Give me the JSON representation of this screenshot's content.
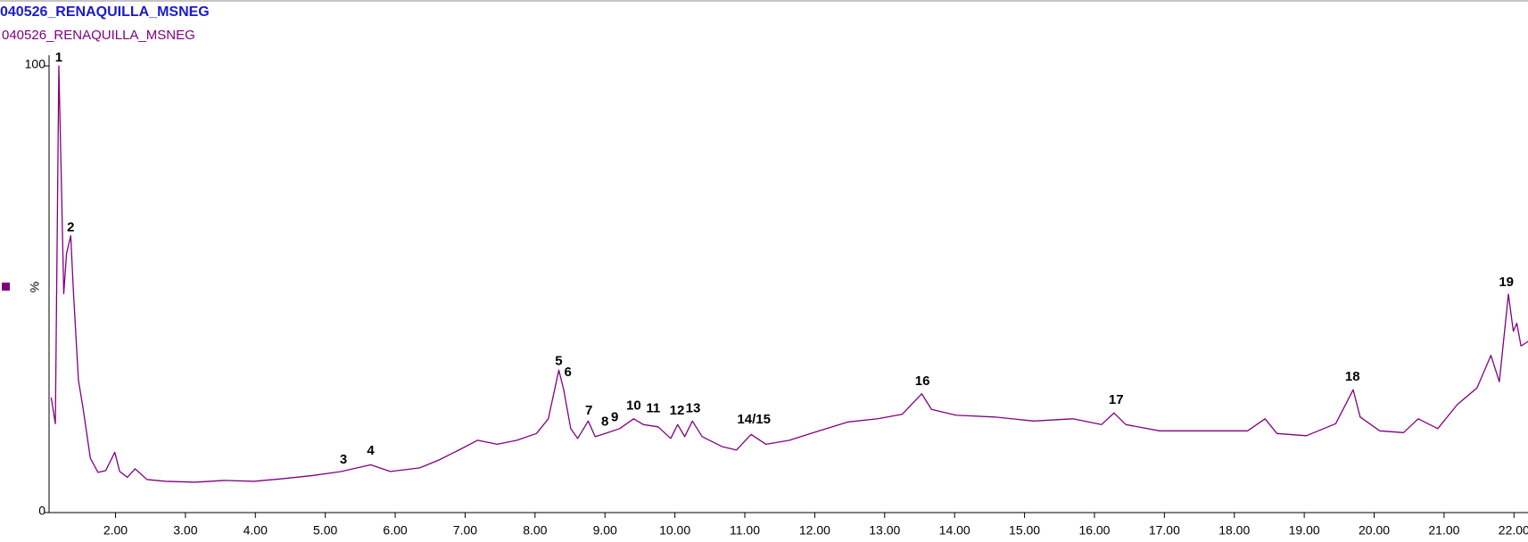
{
  "chart_data": {
    "type": "line",
    "title": "040526_RENAQUILLA_MSNEG",
    "subtitle": "040526_RENAQUILLA_MSNEG",
    "ylabel": "%",
    "xlim": [
      1.05,
      22.2
    ],
    "ylim": [
      0,
      100
    ],
    "yticks": [
      0,
      100
    ],
    "xticks": [
      {
        "value": 2,
        "label": "2.00"
      },
      {
        "value": 3,
        "label": "3.00"
      },
      {
        "value": 4,
        "label": "4.00"
      },
      {
        "value": 5,
        "label": "5.00"
      },
      {
        "value": 6,
        "label": "6.00"
      },
      {
        "value": 7,
        "label": "7.00"
      },
      {
        "value": 8,
        "label": "8.00"
      },
      {
        "value": 9,
        "label": "9.00"
      },
      {
        "value": 10,
        "label": "10.00"
      },
      {
        "value": 11,
        "label": "11.00"
      },
      {
        "value": 12,
        "label": "12.00"
      },
      {
        "value": 13,
        "label": "13.00"
      },
      {
        "value": 14,
        "label": "14.00"
      },
      {
        "value": 15,
        "label": "15.00"
      },
      {
        "value": 16,
        "label": "16.00"
      },
      {
        "value": 17,
        "label": "17.00"
      },
      {
        "value": 18,
        "label": "18.00"
      },
      {
        "value": 19,
        "label": "19.00"
      },
      {
        "value": 20,
        "label": "20.00"
      },
      {
        "value": 21,
        "label": "21.00"
      },
      {
        "value": 22,
        "label": "22.00"
      }
    ],
    "series": [
      {
        "color": "#800080",
        "x": [
          1.08,
          1.14,
          1.19,
          1.23,
          1.26,
          1.3,
          1.36,
          1.4,
          1.47,
          1.54,
          1.64,
          1.75,
          1.86,
          1.99,
          2.06,
          2.17,
          2.28,
          2.45,
          2.72,
          3.14,
          3.56,
          3.98,
          4.4,
          4.82,
          5.23,
          5.65,
          5.93,
          6.35,
          6.63,
          6.91,
          7.18,
          7.46,
          7.74,
          8.02,
          8.19,
          8.34,
          8.41,
          8.51,
          8.61,
          8.76,
          8.86,
          9.0,
          9.21,
          9.41,
          9.55,
          9.76,
          9.94,
          10.04,
          10.14,
          10.25,
          10.39,
          10.67,
          10.88,
          11.09,
          11.3,
          11.64,
          12.06,
          12.48,
          12.9,
          13.25,
          13.53,
          13.67,
          14.02,
          14.57,
          15.13,
          15.69,
          16.1,
          16.28,
          16.45,
          16.93,
          17.64,
          18.19,
          18.44,
          18.61,
          19.03,
          19.45,
          19.7,
          19.8,
          20.08,
          20.42,
          20.63,
          20.91,
          21.19,
          21.47,
          21.67,
          21.79,
          21.92,
          21.99,
          22.04,
          22.1,
          22.21
        ],
        "values": [
          25.8,
          19.9,
          100,
          71,
          49,
          58,
          62,
          49,
          29.7,
          23,
          12.2,
          9,
          9.4,
          13.5,
          9.2,
          7.9,
          9.8,
          7.4,
          7,
          6.8,
          7.2,
          7,
          7.6,
          8.3,
          9.2,
          10.7,
          9.2,
          10,
          11.8,
          14,
          16.2,
          15.3,
          16.2,
          17.7,
          21,
          31.9,
          27.5,
          18.8,
          16.6,
          20.5,
          17,
          17.7,
          18.8,
          21,
          19.7,
          19.2,
          16.6,
          19.7,
          17,
          20.5,
          17,
          14.8,
          14,
          17.5,
          15.3,
          16.2,
          18.3,
          20.3,
          21,
          22,
          26.6,
          23.1,
          21.8,
          21.4,
          20.5,
          21,
          19.7,
          22.3,
          19.7,
          18.3,
          18.3,
          18.3,
          21,
          17.7,
          17.2,
          19.9,
          27.5,
          21.4,
          18.3,
          17.9,
          21,
          18.8,
          24.2,
          27.9,
          35.2,
          29.3,
          48.9,
          40.6,
          42.4,
          37.3,
          38.4
        ]
      }
    ],
    "annotations": [
      {
        "text": "1",
        "x": 1.19,
        "y": 100
      },
      {
        "text": "2",
        "x": 1.36,
        "y": 62
      },
      {
        "text": "3",
        "x": 5.26,
        "y": 10
      },
      {
        "text": "4",
        "x": 5.65,
        "y": 12
      },
      {
        "text": "5",
        "x": 8.34,
        "y": 32
      },
      {
        "text": "6",
        "x": 8.47,
        "y": 29.5
      },
      {
        "text": "7",
        "x": 8.77,
        "y": 21
      },
      {
        "text": "8",
        "x": 9.0,
        "y": 18.5
      },
      {
        "text": "9",
        "x": 9.14,
        "y": 19.5
      },
      {
        "text": "10",
        "x": 9.41,
        "y": 22
      },
      {
        "text": "11",
        "x": 9.69,
        "y": 21.5
      },
      {
        "text": "12",
        "x": 10.03,
        "y": 21
      },
      {
        "text": "13",
        "x": 10.26,
        "y": 21.5
      },
      {
        "text": "14/15",
        "x": 11.13,
        "y": 19
      },
      {
        "text": "16",
        "x": 13.54,
        "y": 27.5
      },
      {
        "text": "17",
        "x": 16.31,
        "y": 23.3
      },
      {
        "text": "18",
        "x": 19.69,
        "y": 28.5
      },
      {
        "text": "19",
        "x": 21.89,
        "y": 49.7
      }
    ]
  }
}
